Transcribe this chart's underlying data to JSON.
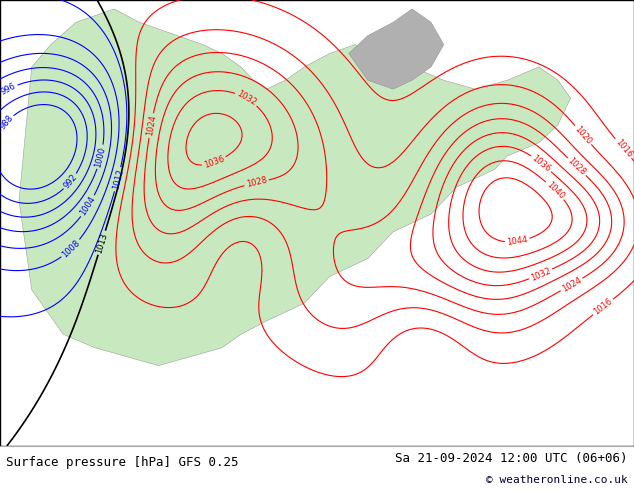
{
  "title_left": "Surface pressure [hPa] GFS 0.25",
  "title_right": "Sa 21-09-2024 12:00 UTC (06+06)",
  "copyright": "© weatheronline.co.uk",
  "bg_color": "#ffffff",
  "map_bg_color": "#c8e6fa",
  "land_color": "#c8e8c0",
  "gray_land_color": "#b0b0b0",
  "bottom_bar_color": "#e8e8e8",
  "border_color": "#000000",
  "label_color_left": "#000000",
  "label_color_right": "#000000",
  "copyright_color": "#000033",
  "figsize": [
    6.34,
    4.9
  ],
  "dpi": 100,
  "bottom_bar_height": 0.09,
  "font_size_bottom": 9,
  "font_size_copyright": 8
}
